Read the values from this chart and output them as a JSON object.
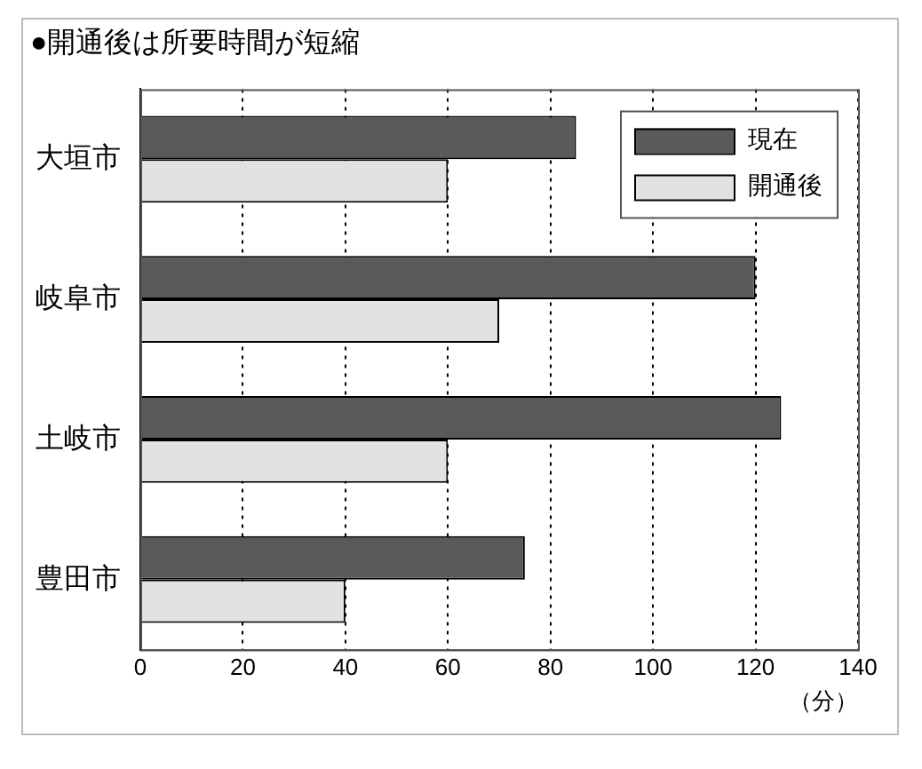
{
  "chart_data": {
    "type": "bar",
    "orientation": "horizontal",
    "title": "●開通後は所要時間が短縮",
    "xlabel": "（分）",
    "categories": [
      "大垣市",
      "岐阜市",
      "土岐市",
      "豊田市"
    ],
    "series": [
      {
        "name": "現在",
        "color": "#5a5a5a",
        "values": [
          85,
          120,
          125,
          75
        ]
      },
      {
        "name": "開通後",
        "color": "#e2e2e2",
        "values": [
          60,
          70,
          60,
          40
        ]
      }
    ],
    "xlim": [
      0,
      140
    ],
    "xticks": [
      0,
      20,
      40,
      60,
      80,
      100,
      120,
      140
    ],
    "grid": "x",
    "legend": "top right"
  }
}
